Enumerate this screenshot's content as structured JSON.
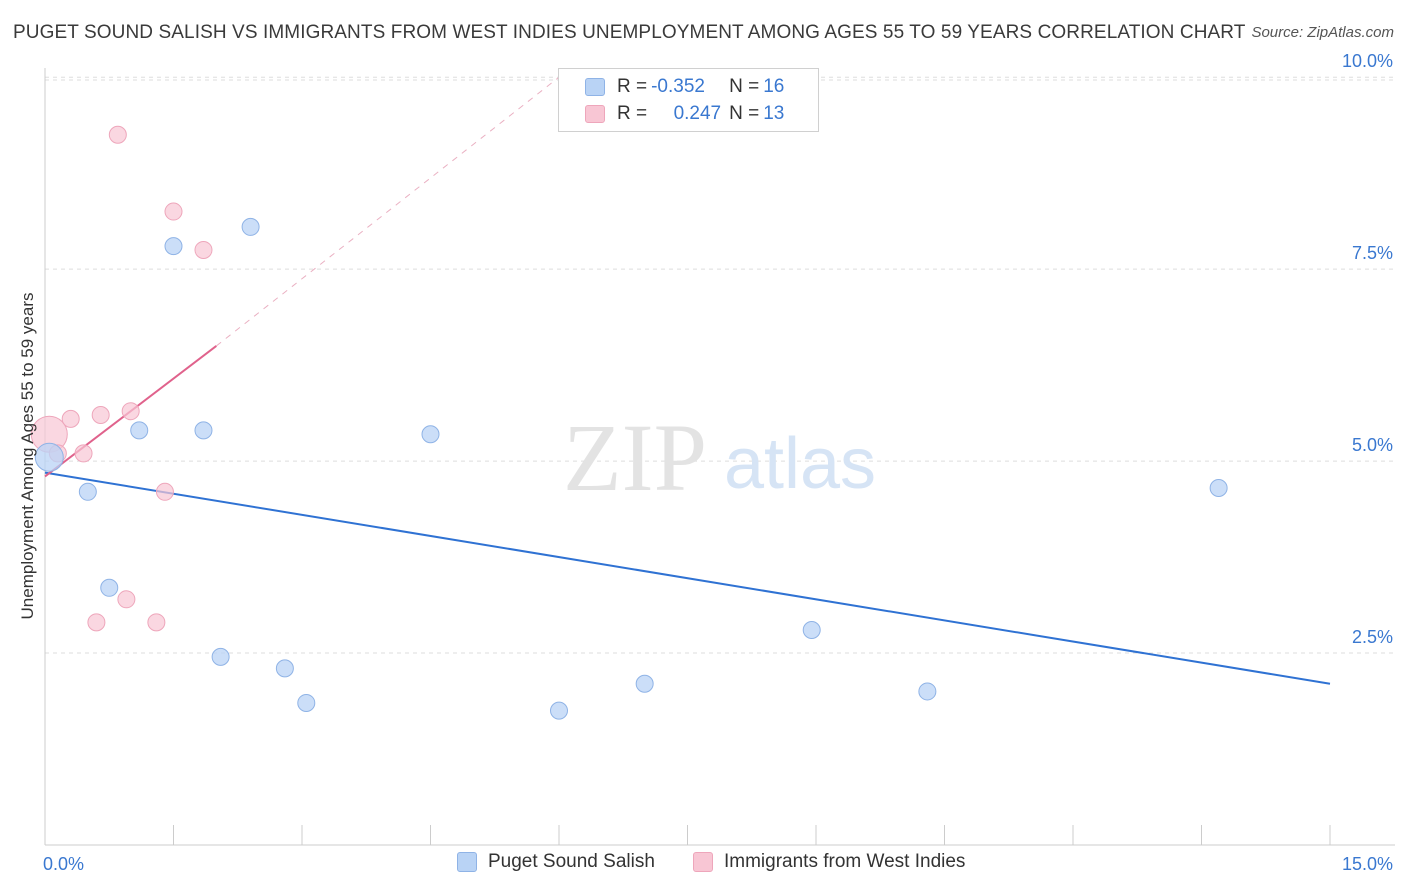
{
  "title": "PUGET SOUND SALISH VS IMMIGRANTS FROM WEST INDIES UNEMPLOYMENT AMONG AGES 55 TO 59 YEARS CORRELATION CHART",
  "source": "Source: ZipAtlas.com",
  "watermark": {
    "zip": "ZIP",
    "atlas": "atlas"
  },
  "legend": {
    "rows": [
      {
        "r_label": "R = ",
        "r_value": "-0.352",
        "n_label": "N = ",
        "n_value": "16"
      },
      {
        "r_label": "R = ",
        "r_value": "0.247",
        "n_label": "N = ",
        "n_value": "13"
      }
    ]
  },
  "bottom_legend": [
    "Puget Sound Salish",
    "Immigrants from West Indies"
  ],
  "colors": {
    "series1_fill": "#b9d3f5",
    "series1_stroke": "#8fb3e6",
    "series1_line": "#2f72d3",
    "series2_fill": "#f8c6d4",
    "series2_stroke": "#eea6bb",
    "series2_line": "#e0628c",
    "axis_text": "#3a78d0",
    "grid": "#dddddd"
  },
  "chart_data": {
    "type": "scatter",
    "title": "PUGET SOUND SALISH VS IMMIGRANTS FROM WEST INDIES UNEMPLOYMENT AMONG AGES 55 TO 59 YEARS CORRELATION CHART",
    "xlabel": "",
    "ylabel": "Unemployment Among Ages 55 to 59 years",
    "xlim": [
      0,
      15
    ],
    "ylim": [
      0,
      10.25
    ],
    "x_tick_labels": [
      "0.0%",
      "15.0%"
    ],
    "y_ticks": [
      2.5,
      5.0,
      7.5,
      10.0
    ],
    "y_tick_labels": [
      "2.5%",
      "5.0%",
      "7.5%",
      "10.0%"
    ],
    "series": [
      {
        "name": "Puget Sound Salish",
        "r": -0.352,
        "n": 16,
        "points": [
          [
            0.05,
            5.05
          ],
          [
            0.5,
            4.6
          ],
          [
            0.75,
            3.35
          ],
          [
            1.1,
            5.4
          ],
          [
            1.5,
            7.8
          ],
          [
            1.85,
            5.4
          ],
          [
            2.05,
            2.45
          ],
          [
            2.4,
            8.05
          ],
          [
            2.8,
            2.3
          ],
          [
            3.05,
            1.85
          ],
          [
            4.5,
            5.35
          ],
          [
            6.0,
            1.75
          ],
          [
            7.0,
            2.1
          ],
          [
            8.95,
            2.8
          ],
          [
            10.3,
            2.0
          ],
          [
            13.7,
            4.65
          ]
        ],
        "trend": {
          "x": [
            0,
            15
          ],
          "y": [
            4.85,
            2.1
          ]
        }
      },
      {
        "name": "Immigrants from West Indies",
        "r": 0.247,
        "n": 13,
        "points": [
          [
            0.05,
            5.35
          ],
          [
            0.15,
            5.1
          ],
          [
            0.3,
            5.55
          ],
          [
            0.45,
            5.1
          ],
          [
            0.6,
            2.9
          ],
          [
            0.65,
            5.6
          ],
          [
            0.85,
            9.25
          ],
          [
            0.95,
            3.2
          ],
          [
            1.0,
            5.65
          ],
          [
            1.3,
            2.9
          ],
          [
            1.4,
            4.6
          ],
          [
            1.5,
            8.25
          ],
          [
            1.85,
            7.75
          ]
        ],
        "trend": {
          "x": [
            0,
            2.0
          ],
          "y": [
            4.8,
            6.5
          ]
        },
        "trend_dashed": {
          "x": [
            2.0,
            6.0
          ],
          "y": [
            6.5,
            10.0
          ]
        }
      }
    ]
  }
}
